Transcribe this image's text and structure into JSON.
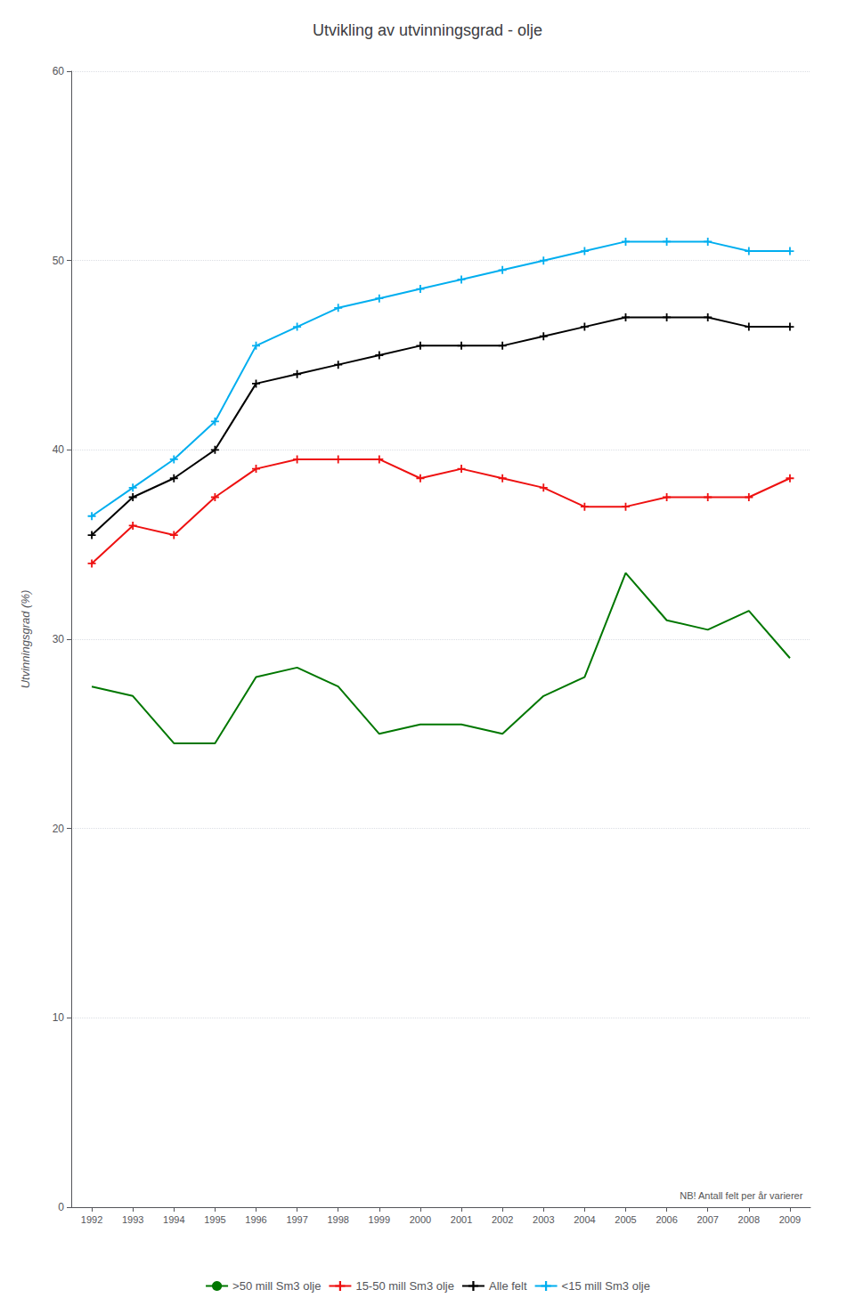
{
  "chart_data": {
    "type": "line",
    "title": "Utvikling av utvinningsgrad - olje",
    "ylabel": "Utvinningsgrad (%)",
    "annotations": [
      "NB! Antall felt per år varierer"
    ],
    "x": [
      1992,
      1993,
      1994,
      1995,
      1996,
      1997,
      1998,
      1999,
      2000,
      2001,
      2002,
      2003,
      2004,
      2005,
      2006,
      2007,
      2008,
      2009
    ],
    "series": [
      {
        "name": ">50 mill Sm3 olje",
        "color": "#007700",
        "marker": "none",
        "values": [
          27.5,
          27.0,
          24.5,
          24.5,
          28.0,
          28.5,
          27.5,
          25.0,
          25.5,
          25.5,
          25.0,
          27.0,
          28.0,
          33.5,
          31.0,
          30.5,
          31.5,
          29.0
        ]
      },
      {
        "name": "15-50 mill Sm3 olje",
        "color": "#EE1111",
        "marker": "plus",
        "values": [
          34.0,
          36.0,
          35.5,
          37.5,
          39.0,
          39.5,
          39.5,
          39.5,
          38.5,
          39.0,
          38.5,
          38.0,
          37.0,
          37.0,
          37.5,
          37.5,
          37.5,
          38.5
        ]
      },
      {
        "name": "Alle felt",
        "color": "#000000",
        "marker": "plus",
        "values": [
          35.5,
          37.5,
          38.5,
          40.0,
          43.5,
          44.0,
          44.5,
          45.0,
          45.5,
          45.5,
          45.5,
          46.0,
          46.5,
          47.0,
          47.0,
          47.0,
          46.5,
          46.5
        ]
      },
      {
        "name": "<15 mill Sm3 olje",
        "color": "#00AEEF",
        "marker": "plus",
        "values": [
          36.5,
          38.0,
          39.5,
          41.5,
          45.5,
          46.5,
          47.5,
          48.0,
          48.5,
          49.0,
          49.5,
          50.0,
          50.5,
          51.0,
          51.0,
          51.0,
          50.5,
          50.5
        ]
      }
    ],
    "xlim": [
      1991.5,
      2009.5
    ],
    "xticks": [
      1992,
      1993,
      1994,
      1995,
      1996,
      1997,
      1998,
      1999,
      2000,
      2001,
      2002,
      2003,
      2004,
      2005,
      2006,
      2007,
      2008,
      2009
    ],
    "ylim": [
      0,
      60
    ],
    "yticks": [
      0,
      10,
      20,
      30,
      40,
      50,
      60
    ],
    "grid": true,
    "legend": "bottom"
  }
}
